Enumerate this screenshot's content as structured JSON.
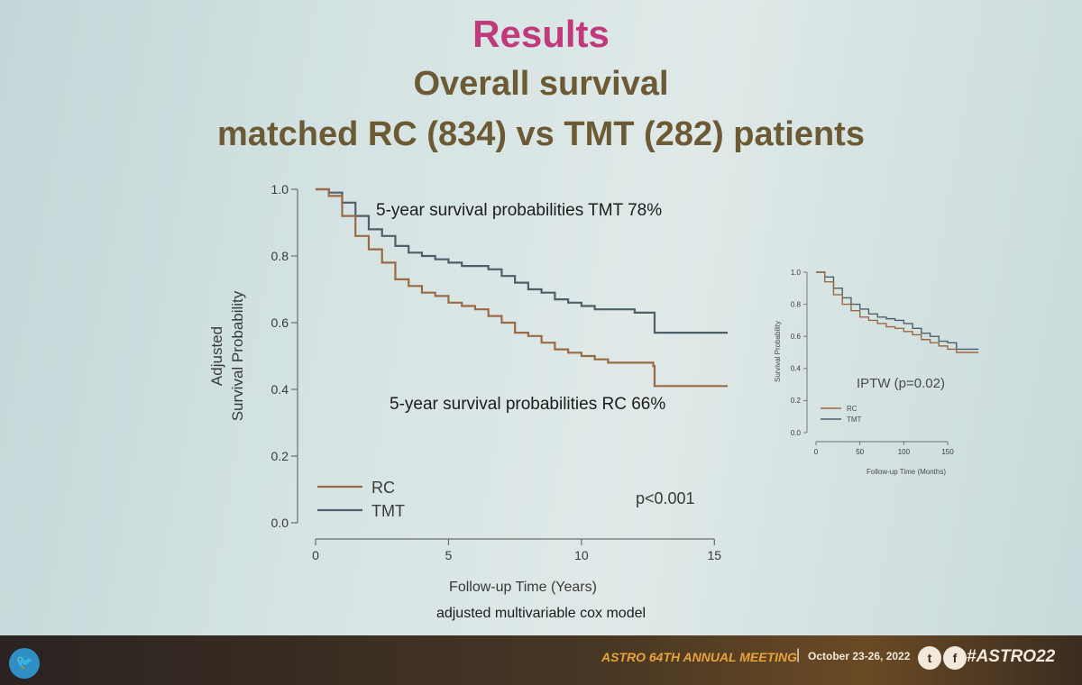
{
  "slide": {
    "title": "Results",
    "subtitle_1": "Overall survival",
    "subtitle_2": "matched RC  (834) vs TMT  (282) patients",
    "annotation_tmt": "5-year survival probabilities TMT 78%",
    "annotation_rc": "5-year survival probabilities RC 66%",
    "model_note": "adjusted multivariable cox model"
  },
  "colors": {
    "rc": "#9a6a45",
    "tmt": "#4f5f6a",
    "title": "#c0397a",
    "subtitle": "#6b5a33"
  },
  "chart_data": [
    {
      "type": "line",
      "name": "main",
      "title": "",
      "xlabel": "Follow-up Time (Years)",
      "ylabel_lines": [
        "Adjusted",
        "Survival Probability"
      ],
      "xlim": [
        0,
        15.6
      ],
      "ylim": [
        0,
        1
      ],
      "xticks": [
        0,
        5,
        10,
        15
      ],
      "yticks": [
        0.0,
        0.2,
        0.4,
        0.6,
        0.8,
        1.0
      ],
      "ytick_labels": [
        "0.0",
        "0.2",
        "0.4",
        "0.6",
        "0.8",
        "1.0"
      ],
      "legend": [
        "RC",
        "TMT"
      ],
      "pvalue": "p<0.001",
      "series": [
        {
          "name": "TMT",
          "step": true,
          "points": [
            [
              0,
              1.0
            ],
            [
              0.5,
              0.99
            ],
            [
              1,
              0.96
            ],
            [
              1.5,
              0.92
            ],
            [
              2,
              0.88
            ],
            [
              2.5,
              0.86
            ],
            [
              3,
              0.83
            ],
            [
              3.5,
              0.81
            ],
            [
              4,
              0.8
            ],
            [
              4.5,
              0.79
            ],
            [
              5,
              0.78
            ],
            [
              5.5,
              0.77
            ],
            [
              6,
              0.77
            ],
            [
              6.5,
              0.76
            ],
            [
              7,
              0.74
            ],
            [
              7.5,
              0.72
            ],
            [
              8,
              0.7
            ],
            [
              8.5,
              0.69
            ],
            [
              9,
              0.67
            ],
            [
              9.5,
              0.66
            ],
            [
              10,
              0.65
            ],
            [
              10.5,
              0.64
            ],
            [
              11,
              0.64
            ],
            [
              12,
              0.63
            ],
            [
              12.7,
              0.63
            ],
            [
              12.75,
              0.57
            ],
            [
              15.5,
              0.57
            ]
          ]
        },
        {
          "name": "RC",
          "step": true,
          "points": [
            [
              0,
              1.0
            ],
            [
              0.5,
              0.98
            ],
            [
              1,
              0.92
            ],
            [
              1.5,
              0.86
            ],
            [
              2,
              0.82
            ],
            [
              2.5,
              0.78
            ],
            [
              3,
              0.73
            ],
            [
              3.5,
              0.71
            ],
            [
              4,
              0.69
            ],
            [
              4.5,
              0.68
            ],
            [
              5,
              0.66
            ],
            [
              5.5,
              0.65
            ],
            [
              6,
              0.64
            ],
            [
              6.5,
              0.62
            ],
            [
              7,
              0.6
            ],
            [
              7.5,
              0.57
            ],
            [
              8,
              0.56
            ],
            [
              8.5,
              0.54
            ],
            [
              9,
              0.52
            ],
            [
              9.5,
              0.51
            ],
            [
              10,
              0.5
            ],
            [
              10.5,
              0.49
            ],
            [
              11,
              0.48
            ],
            [
              12,
              0.48
            ],
            [
              12.7,
              0.47
            ],
            [
              12.75,
              0.41
            ],
            [
              15.5,
              0.41
            ]
          ]
        }
      ]
    },
    {
      "type": "line",
      "name": "inset",
      "title": "IPTW (p=0.02)",
      "xlabel": "Follow-up Time (Months)",
      "ylabel": "Survival Probability",
      "xlim": [
        0,
        190
      ],
      "ylim": [
        0,
        1
      ],
      "xticks": [
        0,
        50,
        100,
        150
      ],
      "yticks": [
        0.0,
        0.2,
        0.4,
        0.6,
        0.8,
        1.0
      ],
      "ytick_labels": [
        "0.0",
        "0.2",
        "0.4",
        "0.6",
        "0.8",
        "1.0"
      ],
      "legend": [
        "RC",
        "TMT"
      ],
      "series": [
        {
          "name": "TMT",
          "step": true,
          "points": [
            [
              0,
              1.0
            ],
            [
              10,
              0.97
            ],
            [
              20,
              0.9
            ],
            [
              30,
              0.84
            ],
            [
              40,
              0.8
            ],
            [
              50,
              0.77
            ],
            [
              60,
              0.74
            ],
            [
              70,
              0.72
            ],
            [
              80,
              0.71
            ],
            [
              90,
              0.7
            ],
            [
              100,
              0.68
            ],
            [
              110,
              0.65
            ],
            [
              120,
              0.62
            ],
            [
              130,
              0.6
            ],
            [
              140,
              0.57
            ],
            [
              150,
              0.56
            ],
            [
              160,
              0.52
            ],
            [
              185,
              0.52
            ]
          ]
        },
        {
          "name": "RC",
          "step": true,
          "points": [
            [
              0,
              1.0
            ],
            [
              10,
              0.94
            ],
            [
              20,
              0.86
            ],
            [
              30,
              0.8
            ],
            [
              40,
              0.76
            ],
            [
              50,
              0.72
            ],
            [
              60,
              0.7
            ],
            [
              70,
              0.68
            ],
            [
              80,
              0.66
            ],
            [
              90,
              0.65
            ],
            [
              100,
              0.63
            ],
            [
              110,
              0.61
            ],
            [
              120,
              0.58
            ],
            [
              130,
              0.56
            ],
            [
              140,
              0.54
            ],
            [
              150,
              0.52
            ],
            [
              160,
              0.5
            ],
            [
              185,
              0.5
            ]
          ]
        }
      ]
    }
  ],
  "footer": {
    "meeting": "ASTRO 64TH ANNUAL MEETING",
    "separator": "|",
    "dates": "October 23-26, 2022",
    "hashtag": "#ASTRO22",
    "icons": [
      "twitter-bird-icon",
      "facebook-icon"
    ]
  }
}
